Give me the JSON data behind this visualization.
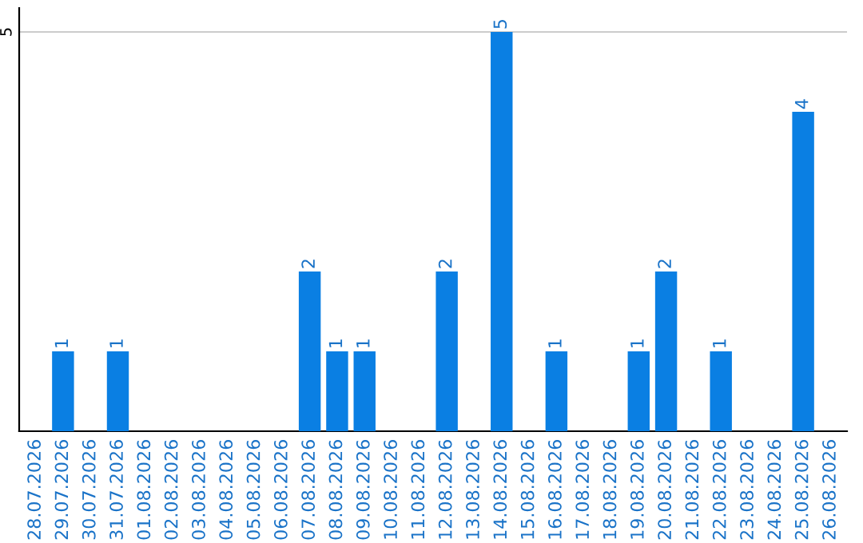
{
  "chart_data": {
    "type": "bar",
    "categories": [
      "28.07.2026",
      "29.07.2026",
      "30.07.2026",
      "31.07.2026",
      "01.08.2026",
      "02.08.2026",
      "03.08.2026",
      "04.08.2026",
      "05.08.2026",
      "06.08.2026",
      "07.08.2026",
      "08.08.2026",
      "09.08.2026",
      "10.08.2026",
      "11.08.2026",
      "12.08.2026",
      "13.08.2026",
      "14.08.2026",
      "15.08.2026",
      "16.08.2026",
      "17.08.2026",
      "18.08.2026",
      "19.08.2026",
      "20.08.2026",
      "21.08.2026",
      "22.08.2026",
      "23.08.2026",
      "24.08.2026",
      "25.08.2026",
      "26.08.2026"
    ],
    "values": [
      0,
      1,
      0,
      1,
      0,
      0,
      0,
      0,
      0,
      0,
      2,
      1,
      1,
      0,
      0,
      2,
      0,
      5,
      0,
      1,
      0,
      0,
      1,
      2,
      0,
      1,
      0,
      0,
      4,
      0
    ],
    "value_labels": [
      null,
      "1",
      null,
      "1",
      null,
      null,
      null,
      null,
      null,
      null,
      "2",
      "1",
      "1",
      null,
      null,
      "2",
      null,
      "5",
      null,
      "1",
      null,
      null,
      "1",
      "2",
      null,
      "1",
      null,
      null,
      "4",
      null
    ],
    "color": "#0a7fe3",
    "ylim": [
      0,
      5.3
    ],
    "yticks": [
      5
    ],
    "grid": "y"
  }
}
